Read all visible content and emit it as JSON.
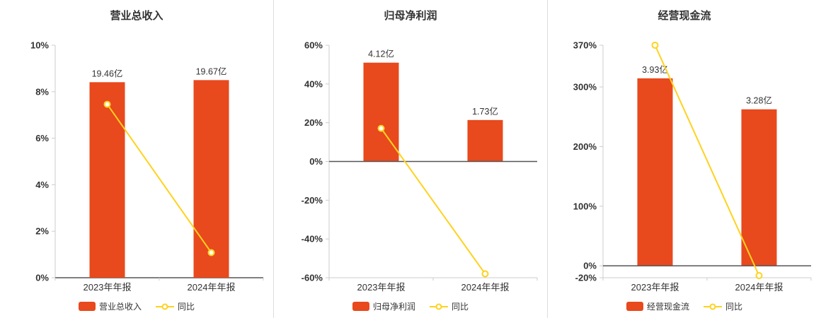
{
  "colors": {
    "bar": "#e8491d",
    "line": "#ffd21e",
    "marker_fill": "#ffffff",
    "axis": "#cccccc",
    "zero_line": "#555555",
    "text": "#333333",
    "divider": "#dddddd"
  },
  "chart_data": [
    {
      "type": "bar",
      "title": "营业总收入",
      "categories": [
        "2023年年报",
        "2024年年报"
      ],
      "series": [
        {
          "name": "营业总收入",
          "type": "bar",
          "values": [
            8.41,
            8.5
          ],
          "labels": [
            "19.46亿",
            "19.67亿"
          ]
        },
        {
          "name": "同比",
          "type": "line",
          "values": [
            7.46,
            1.08
          ]
        }
      ],
      "ylim": [
        0,
        10
      ],
      "yticks": [
        0,
        2,
        4,
        6,
        8,
        10
      ],
      "ytick_format": "percent",
      "grid": false,
      "legend_position": "bottom"
    },
    {
      "type": "bar",
      "title": "归母净利润",
      "categories": [
        "2023年年报",
        "2024年年报"
      ],
      "series": [
        {
          "name": "归母净利润",
          "type": "bar",
          "values": [
            51,
            21.4
          ],
          "labels": [
            "4.12亿",
            "1.73亿"
          ]
        },
        {
          "name": "同比",
          "type": "line",
          "values": [
            17.1,
            -58
          ]
        }
      ],
      "ylim": [
        -60,
        60
      ],
      "yticks": [
        -60,
        -40,
        -20,
        0,
        20,
        40,
        60
      ],
      "ytick_format": "percent",
      "grid": false,
      "legend_position": "bottom"
    },
    {
      "type": "bar",
      "title": "经营现金流",
      "categories": [
        "2023年年报",
        "2024年年报"
      ],
      "series": [
        {
          "name": "经营现金流",
          "type": "bar",
          "values": [
            314.5,
            262.5
          ],
          "labels": [
            "3.93亿",
            "3.28亿"
          ]
        },
        {
          "name": "同比",
          "type": "line",
          "values": [
            370,
            -16.5
          ]
        }
      ],
      "ylim": [
        -20,
        370
      ],
      "yticks": [
        -20,
        0,
        100,
        200,
        300,
        370
      ],
      "ytick_format": "percent",
      "grid": false,
      "legend_position": "bottom"
    }
  ]
}
